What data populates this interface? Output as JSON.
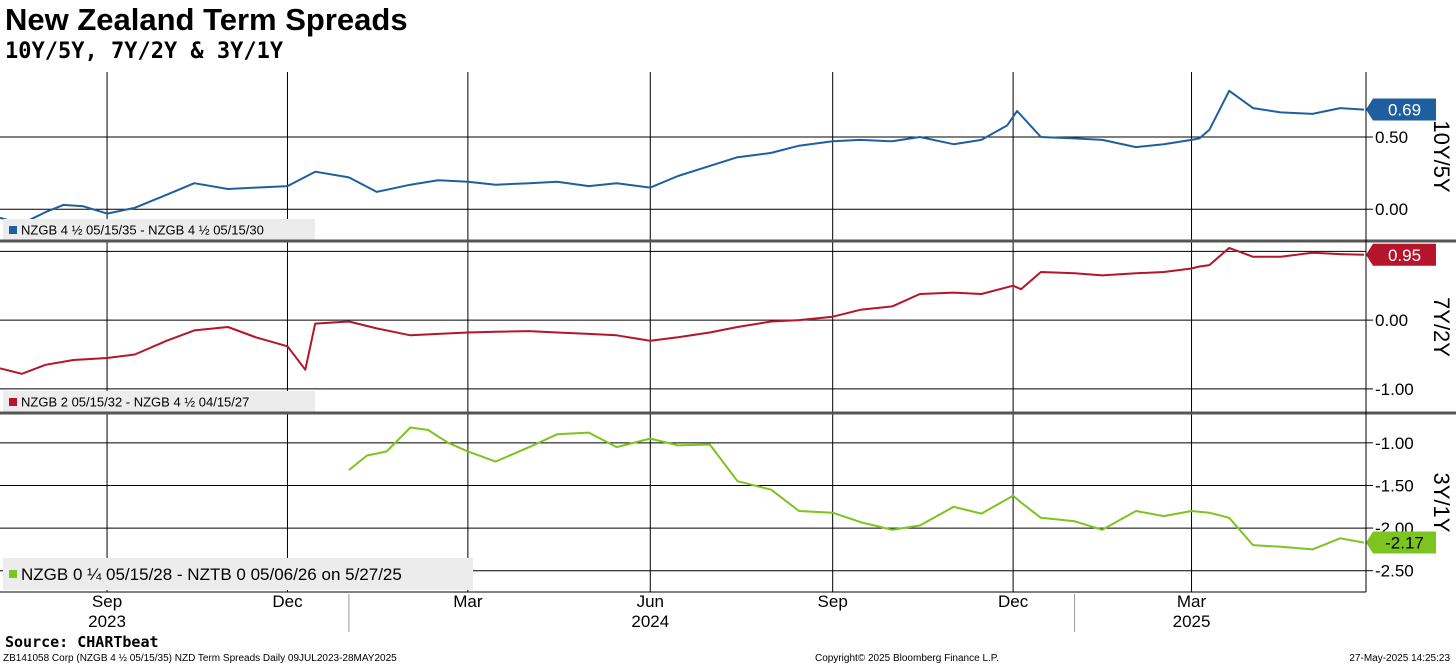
{
  "header": {
    "title": "New Zealand Term Spreads",
    "subtitle": "10Y/5Y, 7Y/2Y & 3Y/1Y"
  },
  "footer": {
    "source": "Source: CHARTbeat",
    "left": "ZB141058 Corp (NZGB 4 ½ 05/15/35) NZD Term Spreads  Daily 09JUL2023-28MAY2025",
    "center": "Copyright© 2025 Bloomberg Finance L.P.",
    "right": "27-May-2025 14:25:23"
  },
  "colors": {
    "blue": "#1f5fa0",
    "red": "#b5152b",
    "green": "#7cc41f",
    "grid": "#000000",
    "legend_bg": "#ececec"
  },
  "x_axis": {
    "date_range": [
      "2023-07-09",
      "2025-05-28"
    ],
    "month_ticks": [
      {
        "label": "Sep",
        "date": "2023-09-01"
      },
      {
        "label": "Dec",
        "date": "2023-12-01"
      },
      {
        "label": "Mar",
        "date": "2024-03-01"
      },
      {
        "label": "Jun",
        "date": "2024-06-01"
      },
      {
        "label": "Sep",
        "date": "2024-09-01"
      },
      {
        "label": "Dec",
        "date": "2024-12-01"
      },
      {
        "label": "Mar",
        "date": "2025-03-01"
      }
    ],
    "year_labels": [
      {
        "label": "2023",
        "date": "2023-09-01"
      },
      {
        "label": "2024",
        "date": "2024-06-01"
      },
      {
        "label": "2025",
        "date": "2025-03-01"
      }
    ],
    "year_separators": [
      "2024-01-01",
      "2025-01-01"
    ]
  },
  "chart_data": [
    {
      "type": "line",
      "axis_label": "10Y/5Y",
      "legend": "NZGB 4 ½ 05/15/35 - NZGB 4 ½ 05/15/30",
      "last_value_label": "0.69",
      "color": "#1f5fa0",
      "ylim": [
        -0.22,
        0.95
      ],
      "yticks": [
        {
          "v": 0.5,
          "label": "0.50"
        },
        {
          "v": 0.0,
          "label": "0.00"
        }
      ],
      "hgrid": [
        0.5,
        0.0
      ],
      "x": [
        "2023-07-09",
        "2023-07-20",
        "2023-08-01",
        "2023-08-10",
        "2023-08-20",
        "2023-09-01",
        "2023-09-15",
        "2023-10-01",
        "2023-10-15",
        "2023-11-01",
        "2023-11-15",
        "2023-12-01",
        "2023-12-15",
        "2024-01-01",
        "2024-01-15",
        "2024-02-01",
        "2024-02-15",
        "2024-03-01",
        "2024-03-15",
        "2024-04-01",
        "2024-04-15",
        "2024-05-01",
        "2024-05-15",
        "2024-06-01",
        "2024-06-15",
        "2024-07-01",
        "2024-07-15",
        "2024-08-01",
        "2024-08-15",
        "2024-09-01",
        "2024-09-15",
        "2024-10-01",
        "2024-10-15",
        "2024-11-01",
        "2024-11-15",
        "2024-11-28",
        "2024-12-03",
        "2024-12-15",
        "2025-01-01",
        "2025-01-15",
        "2025-02-01",
        "2025-02-15",
        "2025-03-01",
        "2025-03-05",
        "2025-03-10",
        "2025-03-20",
        "2025-04-01",
        "2025-04-15",
        "2025-05-01",
        "2025-05-15",
        "2025-05-27"
      ],
      "values": [
        -0.06,
        -0.1,
        -0.02,
        0.03,
        0.02,
        -0.03,
        0.01,
        0.1,
        0.18,
        0.14,
        0.15,
        0.16,
        0.26,
        0.22,
        0.12,
        0.17,
        0.2,
        0.19,
        0.17,
        0.18,
        0.19,
        0.16,
        0.18,
        0.15,
        0.23,
        0.3,
        0.36,
        0.39,
        0.44,
        0.47,
        0.48,
        0.47,
        0.5,
        0.45,
        0.48,
        0.58,
        0.68,
        0.5,
        0.49,
        0.48,
        0.43,
        0.45,
        0.48,
        0.49,
        0.55,
        0.82,
        0.7,
        0.67,
        0.66,
        0.7,
        0.69
      ]
    },
    {
      "type": "line",
      "axis_label": "7Y/2Y",
      "legend": "NZGB 2 05/15/32 - NZGB 4 ½ 04/15/27",
      "last_value_label": "0.95",
      "color": "#b5152b",
      "ylim": [
        -1.35,
        1.15
      ],
      "yticks": [
        {
          "v": 0.0,
          "label": "0.00"
        },
        {
          "v": -1.0,
          "label": "-1.00"
        }
      ],
      "hgrid": [
        1.0,
        0.0,
        -1.0
      ],
      "x": [
        "2023-07-09",
        "2023-07-20",
        "2023-08-01",
        "2023-08-15",
        "2023-09-01",
        "2023-09-15",
        "2023-10-01",
        "2023-10-15",
        "2023-11-01",
        "2023-11-15",
        "2023-12-01",
        "2023-12-10",
        "2023-12-15",
        "2024-01-01",
        "2024-01-15",
        "2024-02-01",
        "2024-02-15",
        "2024-03-01",
        "2024-03-15",
        "2024-04-01",
        "2024-04-15",
        "2024-05-01",
        "2024-05-15",
        "2024-06-01",
        "2024-06-15",
        "2024-07-01",
        "2024-07-15",
        "2024-08-01",
        "2024-08-15",
        "2024-09-01",
        "2024-09-15",
        "2024-10-01",
        "2024-10-15",
        "2024-11-01",
        "2024-11-15",
        "2024-12-01",
        "2024-12-05",
        "2024-12-15",
        "2025-01-01",
        "2025-01-15",
        "2025-02-01",
        "2025-02-15",
        "2025-03-01",
        "2025-03-05",
        "2025-03-10",
        "2025-03-20",
        "2025-04-01",
        "2025-04-15",
        "2025-05-01",
        "2025-05-15",
        "2025-05-27"
      ],
      "values": [
        -0.7,
        -0.78,
        -0.65,
        -0.58,
        -0.55,
        -0.5,
        -0.3,
        -0.15,
        -0.1,
        -0.25,
        -0.38,
        -0.72,
        -0.05,
        -0.02,
        -0.12,
        -0.22,
        -0.2,
        -0.18,
        -0.17,
        -0.16,
        -0.18,
        -0.2,
        -0.22,
        -0.3,
        -0.25,
        -0.18,
        -0.1,
        -0.02,
        0.0,
        0.05,
        0.15,
        0.2,
        0.38,
        0.4,
        0.38,
        0.5,
        0.45,
        0.7,
        0.68,
        0.65,
        0.68,
        0.7,
        0.75,
        0.78,
        0.8,
        1.05,
        0.92,
        0.92,
        0.98,
        0.96,
        0.95
      ]
    },
    {
      "type": "line",
      "axis_label": "3Y/1Y",
      "legend": "NZGB 0 ¼ 05/15/28 - NZTB 0 05/06/26 on 5/27/25",
      "last_value_label": "-2.17",
      "color": "#7cc41f",
      "ylim": [
        -2.75,
        -0.65
      ],
      "yticks": [
        {
          "v": -1.0,
          "label": "-1.00"
        },
        {
          "v": -1.5,
          "label": "-1.50"
        },
        {
          "v": -2.0,
          "label": "-2.00"
        },
        {
          "v": -2.5,
          "label": "-2.50"
        }
      ],
      "hgrid": [
        -1.0,
        -1.5,
        -2.0,
        -2.5
      ],
      "x": [
        "2024-01-01",
        "2024-01-10",
        "2024-01-20",
        "2024-02-01",
        "2024-02-10",
        "2024-02-20",
        "2024-03-01",
        "2024-03-15",
        "2024-04-01",
        "2024-04-15",
        "2024-05-01",
        "2024-05-15",
        "2024-06-01",
        "2024-06-15",
        "2024-07-01",
        "2024-07-15",
        "2024-08-01",
        "2024-08-15",
        "2024-09-01",
        "2024-09-15",
        "2024-10-01",
        "2024-10-15",
        "2024-11-01",
        "2024-11-15",
        "2024-12-01",
        "2024-12-05",
        "2024-12-15",
        "2025-01-01",
        "2025-01-15",
        "2025-02-01",
        "2025-02-15",
        "2025-03-01",
        "2025-03-10",
        "2025-03-20",
        "2025-04-01",
        "2025-04-15",
        "2025-05-01",
        "2025-05-15",
        "2025-05-27"
      ],
      "values": [
        -1.32,
        -1.15,
        -1.1,
        -0.82,
        -0.85,
        -1.0,
        -1.1,
        -1.22,
        -1.05,
        -0.9,
        -0.88,
        -1.05,
        -0.95,
        -1.03,
        -1.02,
        -1.45,
        -1.55,
        -1.8,
        -1.82,
        -1.93,
        -2.02,
        -1.97,
        -1.75,
        -1.83,
        -1.62,
        -1.7,
        -1.88,
        -1.92,
        -2.02,
        -1.8,
        -1.86,
        -1.8,
        -1.82,
        -1.88,
        -2.2,
        -2.22,
        -2.25,
        -2.12,
        -2.17
      ]
    }
  ]
}
